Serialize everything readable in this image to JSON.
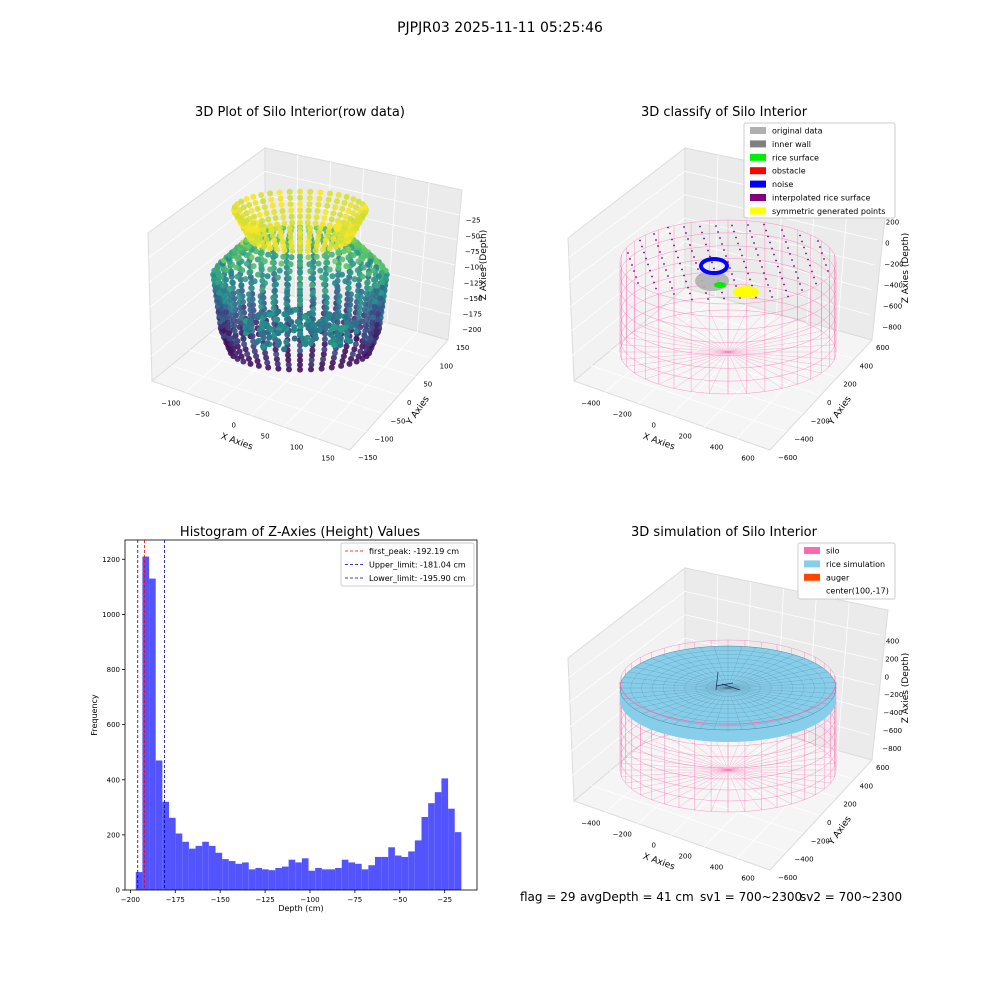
{
  "figure": {
    "suptitle": "PJPJR03 2025-11-11 05:25:46",
    "footer": {
      "flag": "flag = 29",
      "avg_depth": "avgDepth = 41 cm",
      "sv1": "sv1 = 700~2300",
      "sv2": "sv2 = 700~2300"
    }
  },
  "colors": {
    "bar": "#4b4bff",
    "first_peak": "#ff0000",
    "limit": "#0000aa",
    "silo": "#ff69b4",
    "rice_simulation": "#87ceeb",
    "auger": "#ff4500",
    "pane": "#f2f2f2",
    "pane_dark": "#e9e9e9"
  },
  "chart_data": [
    {
      "type": "scatter",
      "projection": "3d",
      "title": "3D Plot of Silo Interior(row data)",
      "xlabel": "X Axies",
      "ylabel": "Y Axies",
      "zlabel": "Z Axies (Depth)",
      "xticks": [
        "−100",
        "−50",
        "0",
        "50",
        "100",
        "150"
      ],
      "yticks": [
        "150",
        "100",
        "50",
        "0",
        "−50",
        "−100",
        "−150"
      ],
      "zticks": [
        "−25",
        "−50",
        "−75",
        "−100",
        "−125",
        "−150",
        "−175",
        "−200"
      ],
      "xlim": [
        -130,
        170
      ],
      "ylim": [
        -150,
        150
      ],
      "zlim": [
        -205,
        -10
      ],
      "colormap": "viridis"
    },
    {
      "type": "scatter",
      "projection": "3d",
      "title": "3D classify of Silo Interior",
      "xlabel": "X Axies",
      "ylabel": "Y Axies",
      "zlabel": "Z Axies (Depth)",
      "xticks": [
        "−400",
        "−200",
        "0",
        "200",
        "400",
        "600"
      ],
      "yticks": [
        "600",
        "400",
        "200",
        "0",
        "−200",
        "−400",
        "−600"
      ],
      "zticks": [
        "200",
        "0",
        "−200",
        "−400",
        "−600",
        "−800"
      ],
      "legend_position": "top-right",
      "legend": [
        {
          "label": "original data",
          "color": "#b0b0b0"
        },
        {
          "label": "inner wall",
          "color": "#808080"
        },
        {
          "label": "rice surface",
          "color": "#00ee00"
        },
        {
          "label": "obstacle",
          "color": "#ff0000"
        },
        {
          "label": "noise",
          "color": "#0000ff"
        },
        {
          "label": "interpolated rice surface",
          "color": "#800080"
        },
        {
          "label": "symmetric generated points",
          "color": "#ffff00"
        }
      ]
    },
    {
      "type": "bar",
      "title": "Histogram of Z-Axies (Height) Values",
      "xlabel": "Depth (cm)",
      "ylabel": "Frequency",
      "xlim": [
        -203,
        -7
      ],
      "ylim": [
        0,
        1270
      ],
      "xticks": [
        -200,
        -175,
        -150,
        -125,
        -100,
        -75,
        -50,
        -25
      ],
      "xtick_labels": [
        "−200",
        "−175",
        "−150",
        "−125",
        "−100",
        "−75",
        "−50",
        "−25"
      ],
      "yticks": [
        0,
        200,
        400,
        600,
        800,
        1000,
        1200
      ],
      "yticks_labels": [
        "0",
        "200",
        "400",
        "600",
        "800",
        "1000",
        "1200"
      ],
      "bin_start": -197,
      "bin_width": 3.7,
      "values": [
        65,
        1210,
        1130,
        470,
        320,
        262,
        205,
        175,
        150,
        160,
        175,
        160,
        135,
        112,
        105,
        95,
        100,
        75,
        80,
        75,
        72,
        80,
        85,
        110,
        100,
        115,
        70,
        80,
        75,
        75,
        80,
        110,
        100,
        95,
        75,
        90,
        120,
        120,
        155,
        125,
        120,
        140,
        180,
        265,
        315,
        355,
        405,
        295,
        210
      ],
      "lines": [
        {
          "label": "first_peak: -192.19 cm",
          "x": -192.19,
          "color": "#ff0000"
        },
        {
          "label": "Upper_limit: -181.04 cm",
          "x": -181.04,
          "color": "#0000aa"
        },
        {
          "label": "Lower_limit: -195.90 cm",
          "x": -195.9,
          "color": "#0000aa"
        }
      ],
      "legend_position": "top-right"
    },
    {
      "type": "surface",
      "projection": "3d",
      "title": "3D simulation of Silo Interior",
      "xlabel": "X Axies",
      "ylabel": "Y Axies",
      "zlabel": "Z Axies (Depth)",
      "xticks": [
        "−400",
        "−200",
        "0",
        "200",
        "400",
        "600"
      ],
      "yticks": [
        "600",
        "400",
        "200",
        "0",
        "−200",
        "−400",
        "−600"
      ],
      "zticks": [
        "400",
        "200",
        "0",
        "−200",
        "−400",
        "−600",
        "−800"
      ],
      "legend_position": "top-right",
      "legend": [
        {
          "label": "silo",
          "color": "#ff69b4"
        },
        {
          "label": "rice simulation",
          "color": "#87ceeb"
        },
        {
          "label": "auger",
          "color": "#ff4500"
        },
        {
          "label": "center(100,-17)",
          "color": ""
        }
      ]
    }
  ]
}
